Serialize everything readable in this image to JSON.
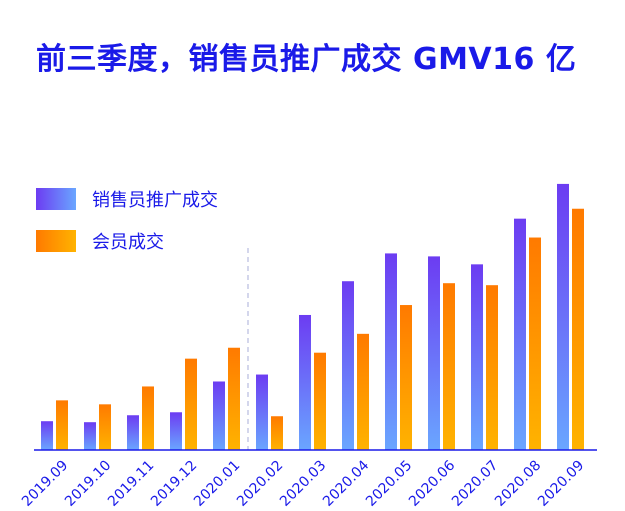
{
  "title": "前三季度，销售员推广成交 GMV16 亿",
  "colors": {
    "title": "#1a1ae8",
    "sales_top": "#6c3cf2",
    "sales_bottom": "#6aa6ff",
    "member_top": "#ff7a00",
    "member_bottom": "#ffb300",
    "axis": "#1a1ae8",
    "divider": "#b8bce0"
  },
  "legend": [
    {
      "name": "销售员推广成交",
      "series": "sales"
    },
    {
      "name": "会员成交",
      "series": "member"
    }
  ],
  "chart_data": {
    "type": "bar",
    "title": "前三季度，销售员推广成交 GMV16 亿",
    "categories": [
      "2019.09",
      "2019.10",
      "2019.11",
      "2019.12",
      "2020.01",
      "2020.02",
      "2020.03",
      "2020.04",
      "2020.05",
      "2020.06",
      "2020.07",
      "2020.08",
      "2020.09"
    ],
    "series": [
      {
        "name": "销售员推广成交",
        "key": "sales",
        "values": [
          29,
          28,
          35,
          38,
          69,
          76,
          136,
          170,
          198,
          195,
          187,
          233,
          268
        ]
      },
      {
        "name": "会员成交",
        "key": "member",
        "values": [
          50,
          46,
          64,
          92,
          103,
          34,
          98,
          117,
          146,
          168,
          166,
          214,
          243
        ]
      }
    ],
    "ylim": [
      0,
      280
    ],
    "xlabel": "",
    "ylabel": "",
    "grid": false,
    "legend_position": "top-left",
    "divider_after": "2020.01",
    "tick_rotation": -45
  }
}
